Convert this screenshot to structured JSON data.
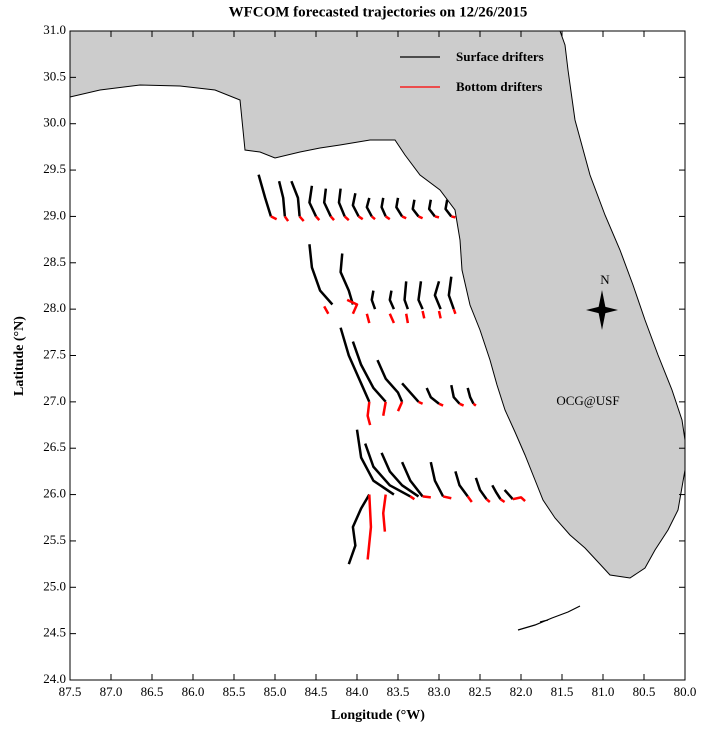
{
  "chart_data": {
    "type": "trajectory-map",
    "title": "WFCOM forecasted trajectories on 12/26/2015",
    "x_label": "Longitude (°W)",
    "y_label": "Latitude (°N)",
    "xlim": [
      87.5,
      80.0
    ],
    "ylim": [
      24.0,
      31.0
    ],
    "xticks": [
      87.5,
      {
        "value": 87,
        "label": "87.0"
      },
      86.5,
      {
        "value": 86,
        "label": "86.0"
      },
      85.5,
      {
        "value": 85,
        "label": "85.0"
      },
      84.5,
      {
        "value": 84,
        "label": "84.0"
      },
      83.5,
      {
        "value": 83,
        "label": "83.0"
      },
      82.5,
      {
        "value": 82,
        "label": "82.0"
      },
      81.5,
      {
        "value": 81,
        "label": "81.0"
      },
      80.5,
      {
        "value": 80,
        "label": "80.0"
      }
    ],
    "yticks": [
      {
        "value": 24,
        "label": "24.0"
      },
      24.5,
      {
        "value": 25,
        "label": "25.0"
      },
      25.5,
      {
        "value": 26,
        "label": "26.0"
      },
      26.5,
      {
        "value": 27,
        "label": "27.0"
      },
      27.5,
      {
        "value": 28,
        "label": "28.0"
      },
      28.5,
      {
        "value": 29,
        "label": "29.0"
      },
      29.5,
      {
        "value": 30,
        "label": "30.0"
      },
      30.5,
      {
        "value": 31,
        "label": "31.0"
      }
    ],
    "legend": "top-right",
    "annotation": "OCG@USF",
    "north_label": "N",
    "series": [
      {
        "name": "Surface drifters",
        "color": "#000000",
        "x": [
          85.2,
          85.12,
          85.05,
          null,
          84.95,
          84.9,
          84.88,
          null,
          84.8,
          84.72,
          84.7,
          null,
          84.55,
          84.58,
          84.5,
          null,
          84.38,
          84.4,
          84.32,
          null,
          84.2,
          84.22,
          84.15,
          null,
          84.02,
          84.05,
          83.98,
          null,
          83.85,
          83.88,
          83.82,
          null,
          83.68,
          83.7,
          83.65,
          null,
          83.5,
          83.52,
          83.45,
          null,
          83.3,
          83.32,
          83.25,
          null,
          83.1,
          83.12,
          83.05,
          null,
          82.9,
          82.92,
          82.85,
          null,
          84.58,
          84.55,
          84.45,
          84.3,
          null,
          84.18,
          84.2,
          84.1,
          84.05,
          null,
          83.8,
          83.82,
          83.78,
          null,
          83.58,
          83.6,
          83.55,
          null,
          83.4,
          83.42,
          83.38,
          null,
          83.22,
          83.25,
          83.2,
          null,
          83.0,
          83.05,
          82.98,
          null,
          82.85,
          82.88,
          82.82,
          null,
          84.2,
          84.1,
          83.95,
          83.85,
          null,
          84.05,
          83.95,
          83.8,
          83.65,
          null,
          83.75,
          83.65,
          83.5,
          83.45,
          null,
          83.45,
          83.35,
          83.25,
          null,
          83.15,
          83.1,
          83.0,
          null,
          82.85,
          82.82,
          82.75,
          null,
          82.65,
          82.62,
          82.58,
          null,
          84.0,
          83.95,
          83.8,
          83.55,
          null,
          83.9,
          83.8,
          83.6,
          83.35,
          null,
          83.7,
          83.6,
          83.45,
          83.25,
          null,
          83.45,
          83.35,
          83.2,
          null,
          83.1,
          83.05,
          82.95,
          null,
          82.8,
          82.75,
          82.65,
          null,
          82.55,
          82.5,
          82.42,
          null,
          82.35,
          82.3,
          82.25,
          null,
          82.2,
          82.15,
          82.1,
          null,
          84.1,
          84.02,
          84.05,
          83.95,
          83.85
        ],
        "y": [
          29.45,
          29.2,
          29.0,
          null,
          29.38,
          29.2,
          29.0,
          null,
          29.38,
          29.2,
          29.0,
          null,
          29.33,
          29.15,
          29.0,
          null,
          29.3,
          29.15,
          29.0,
          null,
          29.3,
          29.15,
          29.0,
          null,
          29.25,
          29.12,
          29.0,
          null,
          29.2,
          29.1,
          29.0,
          null,
          29.2,
          29.1,
          29.0,
          null,
          29.2,
          29.1,
          29.0,
          null,
          29.18,
          29.08,
          29.0,
          null,
          29.18,
          29.08,
          29.0,
          null,
          29.18,
          29.08,
          29.0,
          null,
          28.7,
          28.45,
          28.2,
          28.05,
          null,
          28.6,
          28.4,
          28.2,
          28.05,
          null,
          28.2,
          28.1,
          28.0,
          null,
          28.2,
          28.1,
          28.0,
          null,
          28.3,
          28.1,
          28.0,
          null,
          28.3,
          28.1,
          28.0,
          null,
          28.3,
          28.15,
          28.0,
          null,
          28.35,
          28.15,
          28.0,
          null,
          27.8,
          27.5,
          27.2,
          27.0,
          null,
          27.65,
          27.4,
          27.15,
          27.0,
          null,
          27.45,
          27.25,
          27.1,
          27.0,
          null,
          27.2,
          27.1,
          27.0,
          null,
          27.15,
          27.05,
          26.98,
          null,
          27.18,
          27.05,
          26.98,
          null,
          27.15,
          27.05,
          26.98,
          null,
          26.7,
          26.4,
          26.15,
          26.0,
          null,
          26.55,
          26.3,
          26.1,
          25.98,
          null,
          26.45,
          26.25,
          26.1,
          25.98,
          null,
          26.35,
          26.15,
          25.98,
          null,
          26.35,
          26.15,
          25.98,
          null,
          26.25,
          26.1,
          25.98,
          null,
          26.18,
          26.05,
          25.95,
          null,
          26.1,
          26.02,
          25.95,
          null,
          26.05,
          26.0,
          25.95,
          null,
          25.25,
          25.45,
          25.65,
          25.85,
          26.0
        ]
      },
      {
        "name": "Bottom drifters",
        "color": "#ff0000",
        "x": [
          85.05,
          84.98,
          null,
          84.88,
          84.84,
          null,
          84.7,
          84.65,
          null,
          84.5,
          84.46,
          null,
          84.32,
          84.28,
          null,
          84.15,
          84.1,
          null,
          83.98,
          83.93,
          null,
          83.82,
          83.78,
          null,
          83.65,
          83.6,
          null,
          83.45,
          83.4,
          null,
          83.25,
          83.2,
          null,
          83.05,
          83.0,
          null,
          82.85,
          82.8,
          null,
          84.4,
          84.35,
          null,
          84.12,
          84.0,
          84.05,
          null,
          83.88,
          83.85,
          null,
          83.6,
          83.55,
          null,
          83.4,
          83.38,
          null,
          83.2,
          83.18,
          null,
          83.0,
          82.98,
          null,
          82.82,
          82.8,
          null,
          83.85,
          83.87,
          83.84,
          null,
          83.65,
          83.68,
          null,
          83.45,
          83.5,
          null,
          83.25,
          83.2,
          null,
          83.0,
          82.95,
          null,
          82.75,
          82.7,
          null,
          82.58,
          82.55,
          null,
          83.85,
          83.83,
          83.87,
          null,
          83.65,
          83.68,
          83.66,
          null,
          83.35,
          83.3,
          null,
          83.2,
          83.1,
          null,
          82.95,
          82.85,
          null,
          82.65,
          82.6,
          null,
          82.42,
          82.38,
          null,
          82.25,
          82.2,
          null,
          82.1,
          82.0,
          81.95
        ],
        "y": [
          29.0,
          28.97,
          null,
          29.0,
          28.95,
          null,
          29.0,
          28.95,
          null,
          29.0,
          28.96,
          null,
          29.0,
          28.96,
          null,
          29.0,
          28.96,
          null,
          29.0,
          28.97,
          null,
          29.0,
          28.97,
          null,
          29.0,
          28.97,
          null,
          29.0,
          28.98,
          null,
          29.0,
          28.98,
          null,
          29.0,
          28.99,
          null,
          29.0,
          28.99,
          null,
          28.03,
          27.95,
          null,
          28.1,
          28.05,
          27.95,
          null,
          27.95,
          27.85,
          null,
          27.95,
          27.85,
          null,
          27.95,
          27.85,
          null,
          27.98,
          27.9,
          null,
          27.98,
          27.9,
          null,
          28.0,
          27.95,
          null,
          27.0,
          26.85,
          26.75,
          null,
          27.0,
          26.85,
          null,
          27.0,
          26.9,
          null,
          27.0,
          26.98,
          null,
          26.98,
          26.96,
          null,
          26.98,
          26.96,
          null,
          26.98,
          26.96,
          null,
          26.0,
          25.65,
          25.3,
          null,
          26.0,
          25.8,
          25.6,
          null,
          25.98,
          25.95,
          null,
          25.98,
          25.97,
          null,
          25.98,
          25.96,
          null,
          25.98,
          25.92,
          null,
          25.95,
          25.92,
          null,
          25.95,
          25.92,
          null,
          25.95,
          25.97,
          25.93
        ]
      }
    ]
  }
}
